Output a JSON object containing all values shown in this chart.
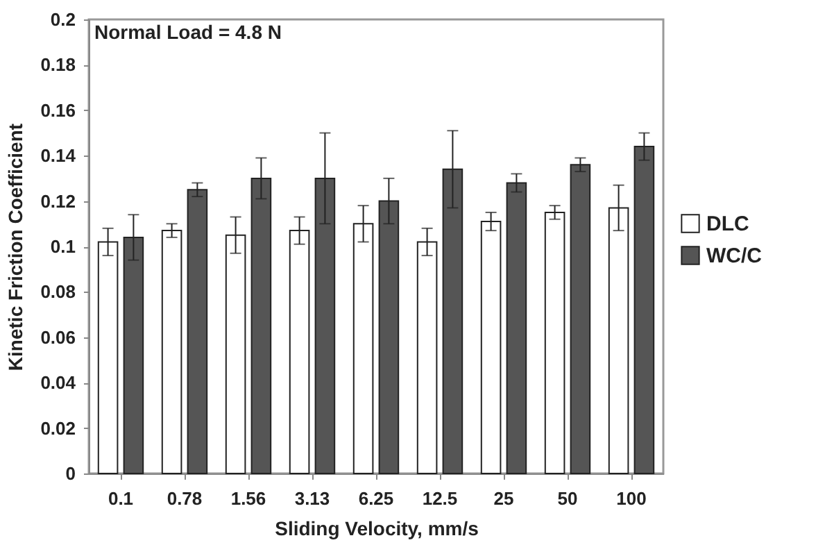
{
  "chart_data": {
    "type": "bar",
    "xlabel": "Sliding Velocity, mm/s",
    "ylabel": "Kinetic Friction Coefficient",
    "categories": [
      "0.1",
      "0.78",
      "1.56",
      "3.13",
      "6.25",
      "12.5",
      "25",
      "50",
      "100"
    ],
    "series": [
      {
        "name": "DLC",
        "color": "#ffffff",
        "values": [
          0.102,
          0.107,
          0.105,
          0.107,
          0.11,
          0.102,
          0.111,
          0.115,
          0.117
        ],
        "errors": [
          0.006,
          0.003,
          0.008,
          0.006,
          0.008,
          0.006,
          0.004,
          0.003,
          0.01
        ]
      },
      {
        "name": "WC/C",
        "color": "#555555",
        "values": [
          0.104,
          0.125,
          0.13,
          0.13,
          0.12,
          0.134,
          0.128,
          0.136,
          0.144
        ],
        "errors": [
          0.01,
          0.003,
          0.009,
          0.02,
          0.01,
          0.017,
          0.004,
          0.003,
          0.006
        ]
      }
    ],
    "ylim": [
      0,
      0.2
    ],
    "yticks": [
      0,
      0.02,
      0.04,
      0.06,
      0.08,
      0.1,
      0.12,
      0.14,
      0.16,
      0.18,
      0.2
    ],
    "annotations": [
      "Normal Load = 4.8 N"
    ],
    "legend": "right"
  }
}
